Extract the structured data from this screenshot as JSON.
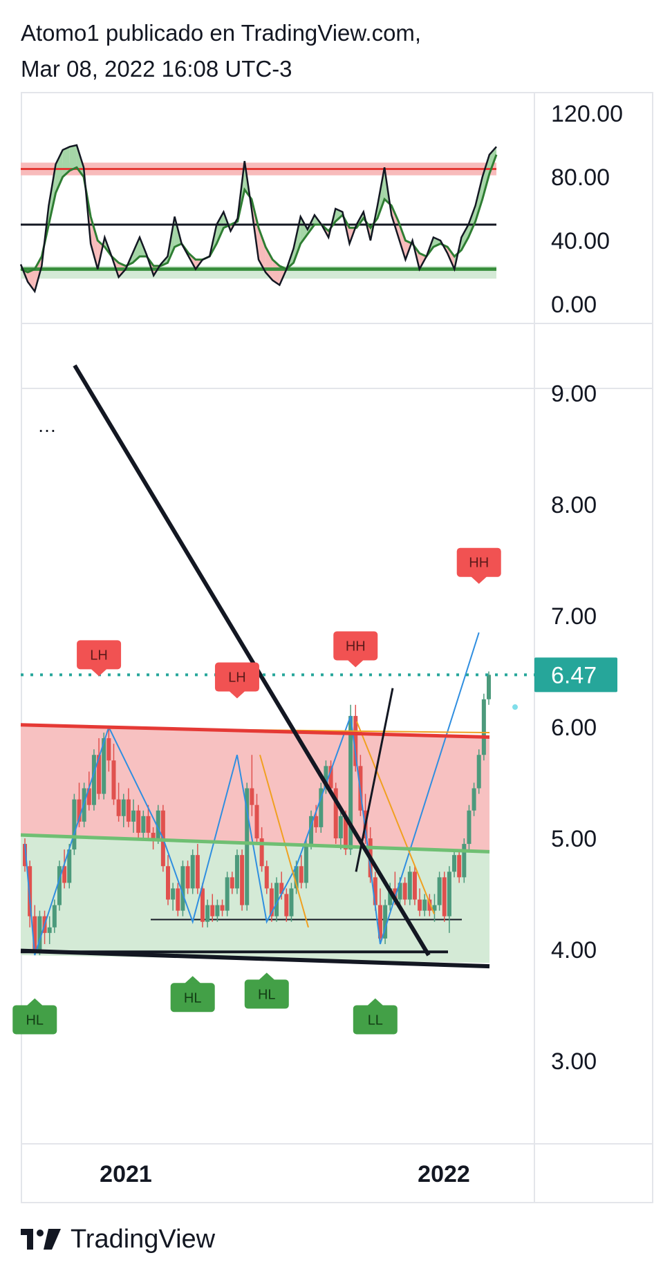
{
  "header": {
    "line1": "Atomo1 publicado en TradingView.com,",
    "line2": "Mar 08, 2022 16:08 UTC-3"
  },
  "footer": {
    "brand": "TradingView",
    "logo_icon": "tradingview-logo-icon"
  },
  "colors": {
    "oscillator_line_black": "#131722",
    "oscillator_line_green": "#2e7d32",
    "oscillator_fill_up": "#a5d6a7",
    "oscillator_fill_down": "#f8bbbb",
    "upper_band": "#e53935",
    "lower_band": "#388e3c",
    "candle_up": "#4c9a7c",
    "candle_down": "#e0514e",
    "zigzag": "#2f8ee0",
    "orange_line": "#f0a020",
    "resistance_zone": "#f7c1c1",
    "support_zone": "#d4ead6",
    "last_price": "#26a69a",
    "label_high": "#f15252",
    "label_low": "#43a047"
  },
  "chart_data": [
    {
      "type": "line",
      "panel": "oscillator",
      "ylim": [
        0,
        120
      ],
      "y_ticks": [
        "120.00",
        "80.00",
        "40.00",
        "0.00"
      ],
      "levels": [
        {
          "value": 85,
          "color": "red"
        },
        {
          "value": 50,
          "color": "black"
        },
        {
          "value": 22,
          "color": "green"
        }
      ],
      "series": [
        {
          "values": [
            25,
            14,
            8,
            24,
            62,
            88,
            97,
            99,
            100,
            86,
            38,
            22,
            42,
            30,
            17,
            22,
            32,
            42,
            31,
            18,
            25,
            30,
            55,
            38,
            30,
            22,
            28,
            30,
            50,
            58,
            46,
            54,
            90,
            60,
            28,
            20,
            15,
            12,
            22,
            35,
            55,
            47,
            56,
            50,
            42,
            60,
            58,
            38,
            50,
            58,
            40,
            62,
            86,
            56,
            42,
            28,
            40,
            22,
            30,
            42,
            40,
            32,
            22,
            42,
            50,
            62,
            80,
            94,
            99
          ]
        },
        {
          "values": [
            22,
            20,
            22,
            30,
            50,
            70,
            80,
            84,
            86,
            80,
            55,
            40,
            36,
            30,
            26,
            24,
            26,
            30,
            30,
            24,
            24,
            26,
            36,
            38,
            32,
            28,
            28,
            30,
            38,
            48,
            50,
            52,
            72,
            66,
            48,
            36,
            28,
            24,
            22,
            26,
            38,
            44,
            50,
            50,
            46,
            52,
            56,
            48,
            48,
            54,
            48,
            54,
            66,
            62,
            52,
            40,
            38,
            32,
            30,
            36,
            38,
            36,
            30,
            34,
            42,
            52,
            66,
            82,
            94
          ]
        }
      ]
    },
    {
      "type": "candlestick",
      "panel": "price",
      "ylim": [
        2.5,
        9.25
      ],
      "y_ticks": [
        "9.00",
        "8.00",
        "7.00",
        "6.00",
        "5.00",
        "4.00",
        "3.00"
      ],
      "x_ticks": [
        "2021",
        "2022"
      ],
      "last_price": 6.47,
      "last_price_label": "6.47",
      "candles": [
        [
          4.95,
          5.0,
          4.7,
          4.75
        ],
        [
          4.75,
          4.8,
          4.2,
          4.3
        ],
        [
          4.3,
          4.4,
          3.95,
          4.0
        ],
        [
          4.0,
          4.35,
          3.95,
          4.3
        ],
        [
          4.3,
          4.35,
          4.05,
          4.15
        ],
        [
          4.15,
          4.3,
          4.05,
          4.2
        ],
        [
          4.2,
          4.45,
          4.15,
          4.4
        ],
        [
          4.4,
          4.8,
          4.35,
          4.75
        ],
        [
          4.75,
          4.9,
          4.55,
          4.6
        ],
        [
          4.6,
          4.95,
          4.55,
          4.9
        ],
        [
          4.9,
          5.4,
          4.85,
          5.35
        ],
        [
          5.35,
          5.5,
          5.1,
          5.15
        ],
        [
          5.15,
          5.5,
          5.1,
          5.45
        ],
        [
          5.45,
          5.6,
          5.25,
          5.3
        ],
        [
          5.3,
          5.8,
          5.25,
          5.75
        ],
        [
          5.75,
          5.9,
          5.35,
          5.4
        ],
        [
          5.4,
          5.95,
          5.35,
          5.9
        ],
        [
          5.9,
          6.0,
          5.6,
          5.7
        ],
        [
          5.7,
          5.85,
          5.3,
          5.35
        ],
        [
          5.35,
          5.5,
          5.15,
          5.2
        ],
        [
          5.2,
          5.4,
          5.1,
          5.35
        ],
        [
          5.35,
          5.45,
          5.1,
          5.15
        ],
        [
          5.15,
          5.35,
          5.05,
          5.25
        ],
        [
          5.25,
          5.3,
          5.0,
          5.05
        ],
        [
          5.05,
          5.25,
          5.0,
          5.2
        ],
        [
          5.2,
          5.3,
          5.0,
          5.05
        ],
        [
          5.05,
          5.1,
          4.9,
          5.0
        ],
        [
          5.0,
          5.3,
          4.95,
          5.25
        ],
        [
          5.25,
          5.3,
          4.7,
          4.75
        ],
        [
          4.75,
          4.85,
          4.4,
          4.45
        ],
        [
          4.45,
          4.6,
          4.35,
          4.55
        ],
        [
          4.55,
          4.6,
          4.3,
          4.35
        ],
        [
          4.35,
          4.8,
          4.3,
          4.75
        ],
        [
          4.75,
          4.8,
          4.5,
          4.55
        ],
        [
          4.55,
          4.9,
          4.5,
          4.85
        ],
        [
          4.85,
          4.95,
          4.5,
          4.55
        ],
        [
          4.55,
          4.6,
          4.2,
          4.25
        ],
        [
          4.25,
          4.45,
          4.2,
          4.4
        ],
        [
          4.4,
          4.5,
          4.25,
          4.3
        ],
        [
          4.3,
          4.45,
          4.25,
          4.4
        ],
        [
          4.4,
          4.45,
          4.3,
          4.35
        ],
        [
          4.35,
          4.7,
          4.3,
          4.65
        ],
        [
          4.65,
          4.7,
          4.5,
          4.55
        ],
        [
          4.55,
          4.9,
          4.5,
          4.85
        ],
        [
          4.85,
          4.9,
          4.35,
          4.4
        ],
        [
          4.4,
          5.5,
          4.35,
          5.45
        ],
        [
          5.45,
          5.75,
          5.2,
          5.3
        ],
        [
          5.3,
          5.4,
          4.95,
          5.0
        ],
        [
          5.0,
          5.1,
          4.7,
          4.75
        ],
        [
          4.75,
          4.8,
          4.5,
          4.55
        ],
        [
          4.55,
          4.6,
          4.25,
          4.3
        ],
        [
          4.3,
          4.65,
          4.25,
          4.6
        ],
        [
          4.6,
          4.7,
          4.45,
          4.5
        ],
        [
          4.5,
          4.55,
          4.25,
          4.3
        ],
        [
          4.3,
          4.6,
          4.25,
          4.55
        ],
        [
          4.55,
          4.8,
          4.5,
          4.75
        ],
        [
          4.75,
          4.85,
          4.55,
          4.6
        ],
        [
          4.6,
          5.0,
          4.55,
          4.95
        ],
        [
          4.95,
          5.25,
          4.9,
          5.2
        ],
        [
          5.2,
          5.3,
          5.05,
          5.1
        ],
        [
          5.1,
          5.5,
          5.05,
          5.45
        ],
        [
          5.45,
          5.7,
          5.4,
          5.65
        ],
        [
          5.65,
          5.7,
          5.4,
          5.45
        ],
        [
          5.45,
          5.5,
          4.95,
          5.0
        ],
        [
          5.0,
          5.25,
          4.9,
          5.2
        ],
        [
          5.2,
          5.25,
          4.85,
          4.9
        ],
        [
          4.9,
          6.2,
          4.85,
          6.1
        ],
        [
          6.1,
          6.2,
          5.6,
          5.65
        ],
        [
          5.65,
          5.75,
          5.2,
          5.25
        ],
        [
          5.25,
          5.4,
          4.95,
          5.0
        ],
        [
          5.0,
          5.1,
          4.6,
          4.65
        ],
        [
          4.65,
          4.7,
          4.35,
          4.4
        ],
        [
          4.4,
          4.55,
          4.05,
          4.1
        ],
        [
          4.1,
          4.45,
          4.05,
          4.4
        ],
        [
          4.4,
          4.6,
          4.35,
          4.55
        ],
        [
          4.55,
          4.7,
          4.4,
          4.45
        ],
        [
          4.45,
          4.65,
          4.35,
          4.6
        ],
        [
          4.6,
          4.65,
          4.4,
          4.45
        ],
        [
          4.45,
          4.75,
          4.4,
          4.7
        ],
        [
          4.7,
          4.75,
          4.4,
          4.45
        ],
        [
          4.45,
          4.55,
          4.3,
          4.35
        ],
        [
          4.35,
          4.5,
          4.3,
          4.45
        ],
        [
          4.45,
          4.5,
          4.3,
          4.35
        ],
        [
          4.35,
          4.5,
          4.25,
          4.4
        ],
        [
          4.4,
          4.7,
          4.35,
          4.65
        ],
        [
          4.65,
          4.7,
          4.25,
          4.3
        ],
        [
          4.3,
          4.75,
          4.15,
          4.7
        ],
        [
          4.7,
          4.9,
          4.65,
          4.85
        ],
        [
          4.85,
          4.9,
          4.6,
          4.65
        ],
        [
          4.65,
          5.0,
          4.6,
          4.95
        ],
        [
          4.95,
          5.3,
          4.9,
          5.25
        ],
        [
          5.25,
          5.5,
          5.2,
          5.45
        ],
        [
          5.45,
          5.8,
          5.4,
          5.75
        ],
        [
          5.75,
          6.3,
          5.7,
          6.25
        ],
        [
          6.25,
          6.5,
          6.2,
          6.47
        ]
      ],
      "labels": [
        {
          "text": "LH",
          "kind": "high",
          "x_index": 15,
          "price": 6.47
        },
        {
          "text": "LH",
          "kind": "high",
          "x_index": 43,
          "price": 6.27
        },
        {
          "text": "HH",
          "kind": "high",
          "x_index": 67,
          "price": 6.55
        },
        {
          "text": "HH",
          "kind": "high",
          "x_index": 92,
          "price": 7.3
        },
        {
          "text": "HL",
          "kind": "low",
          "x_index": 2,
          "price": 3.55
        },
        {
          "text": "HL",
          "kind": "low",
          "x_index": 34,
          "price": 3.75
        },
        {
          "text": "HL",
          "kind": "low",
          "x_index": 49,
          "price": 3.78
        },
        {
          "text": "LL",
          "kind": "low",
          "x_index": 71,
          "price": 3.55
        }
      ]
    }
  ]
}
